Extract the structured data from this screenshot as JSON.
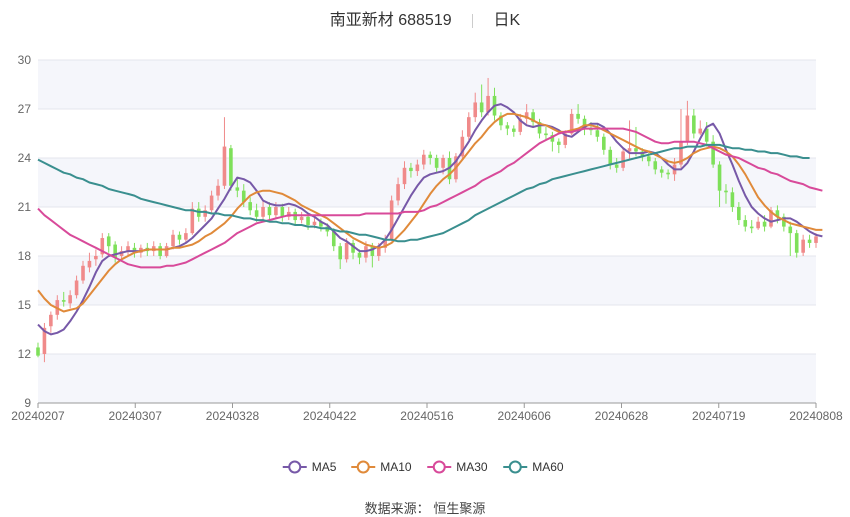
{
  "header": {
    "title": "南亚新材 688519",
    "period": "日K"
  },
  "source": {
    "label": "数据来源：",
    "provider": "恒生聚源"
  },
  "chart_data": {
    "type": "candlestick",
    "title": "南亚新材 688519 日K",
    "y_ticks": [
      9,
      12,
      15,
      18,
      21,
      24,
      27,
      30
    ],
    "ylim": [
      9,
      30
    ],
    "x_ticks": [
      "20240207",
      "20240307",
      "20240328",
      "20240422",
      "20240516",
      "20240606",
      "20240628",
      "20240719",
      "20240808"
    ],
    "up_color": "#f08a8a",
    "down_color": "#7ee05a",
    "candles": [
      [
        12.4,
        11.9,
        12.7,
        11.8
      ],
      [
        12.0,
        13.6,
        13.9,
        11.5
      ],
      [
        13.7,
        14.4,
        14.6,
        13.3
      ],
      [
        14.4,
        15.3,
        15.6,
        14.1
      ],
      [
        15.3,
        15.2,
        15.8,
        14.9
      ],
      [
        15.1,
        15.6,
        15.9,
        14.8
      ],
      [
        15.6,
        16.5,
        16.8,
        15.4
      ],
      [
        16.5,
        17.4,
        17.7,
        16.3
      ],
      [
        17.3,
        17.7,
        18.2,
        17.0
      ],
      [
        17.8,
        18.0,
        18.4,
        17.4
      ],
      [
        18.1,
        19.1,
        19.4,
        17.9
      ],
      [
        19.2,
        18.6,
        19.4,
        18.2
      ],
      [
        18.7,
        17.9,
        18.9,
        17.6
      ],
      [
        18.0,
        18.3,
        18.6,
        17.7
      ],
      [
        18.3,
        18.6,
        18.9,
        18.0
      ],
      [
        18.5,
        18.2,
        18.8,
        17.9
      ],
      [
        18.2,
        18.5,
        18.7,
        17.9
      ],
      [
        18.5,
        18.3,
        18.8,
        18.0
      ],
      [
        18.3,
        18.6,
        18.9,
        18.0
      ],
      [
        18.6,
        18.0,
        18.8,
        17.8
      ],
      [
        18.0,
        18.6,
        18.8,
        17.9
      ],
      [
        18.6,
        19.3,
        19.6,
        18.4
      ],
      [
        19.3,
        19.0,
        19.5,
        18.7
      ],
      [
        19.0,
        19.4,
        19.7,
        18.8
      ],
      [
        19.4,
        20.9,
        21.3,
        19.3
      ],
      [
        20.9,
        20.4,
        21.3,
        20.1
      ],
      [
        20.4,
        20.8,
        21.1,
        20.1
      ],
      [
        20.8,
        21.7,
        22.0,
        20.6
      ],
      [
        21.7,
        22.3,
        22.7,
        21.4
      ],
      [
        22.3,
        24.7,
        26.5,
        22.1
      ],
      [
        24.6,
        22.3,
        24.8,
        22.0
      ],
      [
        22.2,
        22.0,
        22.8,
        21.6
      ],
      [
        22.0,
        21.3,
        22.4,
        21.0
      ],
      [
        21.3,
        20.8,
        21.6,
        20.5
      ],
      [
        20.8,
        20.4,
        21.2,
        20.1
      ],
      [
        20.4,
        21.0,
        21.4,
        20.2
      ],
      [
        21.0,
        20.5,
        21.3,
        20.2
      ],
      [
        20.5,
        21.0,
        21.3,
        20.3
      ],
      [
        21.0,
        20.4,
        21.2,
        20.1
      ],
      [
        20.4,
        20.7,
        21.0,
        20.2
      ],
      [
        20.7,
        20.2,
        20.9,
        19.9
      ],
      [
        20.2,
        20.4,
        20.7,
        20.0
      ],
      [
        20.4,
        19.9,
        20.6,
        19.6
      ],
      [
        19.9,
        20.1,
        20.4,
        19.7
      ],
      [
        20.1,
        19.8,
        20.3,
        19.5
      ],
      [
        19.8,
        19.5,
        20.0,
        19.2
      ],
      [
        19.5,
        18.6,
        19.7,
        18.3
      ],
      [
        18.6,
        17.8,
        18.8,
        17.2
      ],
      [
        17.8,
        18.8,
        19.1,
        17.6
      ],
      [
        18.8,
        18.2,
        19.0,
        17.8
      ],
      [
        18.2,
        17.9,
        18.4,
        17.5
      ],
      [
        17.9,
        18.6,
        18.9,
        17.6
      ],
      [
        18.6,
        18.0,
        18.8,
        17.3
      ],
      [
        18.0,
        18.5,
        18.8,
        17.7
      ],
      [
        18.5,
        19.0,
        19.3,
        18.2
      ],
      [
        19.0,
        21.4,
        21.7,
        18.9
      ],
      [
        21.4,
        22.4,
        22.8,
        21.1
      ],
      [
        22.4,
        23.4,
        23.8,
        22.1
      ],
      [
        23.4,
        23.2,
        23.7,
        22.8
      ],
      [
        23.2,
        23.6,
        23.9,
        22.9
      ],
      [
        23.6,
        24.2,
        24.5,
        23.3
      ],
      [
        24.2,
        24.0,
        24.4,
        23.6
      ],
      [
        24.0,
        23.4,
        24.2,
        23.1
      ],
      [
        23.4,
        24.0,
        24.2,
        23.0
      ],
      [
        24.0,
        22.7,
        24.4,
        22.4
      ],
      [
        22.7,
        24.1,
        24.3,
        22.5
      ],
      [
        24.1,
        25.3,
        25.7,
        23.9
      ],
      [
        25.3,
        26.5,
        26.8,
        25.1
      ],
      [
        26.5,
        27.4,
        28.0,
        26.2
      ],
      [
        27.4,
        26.8,
        28.5,
        26.5
      ],
      [
        26.8,
        27.8,
        28.9,
        26.6
      ],
      [
        27.8,
        26.6,
        28.3,
        26.3
      ],
      [
        26.6,
        26.0,
        26.8,
        25.7
      ],
      [
        26.0,
        25.8,
        26.2,
        25.4
      ],
      [
        25.8,
        25.6,
        26.0,
        25.3
      ],
      [
        25.6,
        26.4,
        26.7,
        25.4
      ],
      [
        26.4,
        26.8,
        27.3,
        26.1
      ],
      [
        26.8,
        26.2,
        27.0,
        25.9
      ],
      [
        26.2,
        25.5,
        26.4,
        25.2
      ],
      [
        25.5,
        25.4,
        25.9,
        25.1
      ],
      [
        25.4,
        25.0,
        25.6,
        24.4
      ],
      [
        25.0,
        24.8,
        25.2,
        24.3
      ],
      [
        24.8,
        25.5,
        25.7,
        24.6
      ],
      [
        25.5,
        26.7,
        27.0,
        25.4
      ],
      [
        26.7,
        26.4,
        27.3,
        26.1
      ],
      [
        26.4,
        25.8,
        26.6,
        25.4
      ],
      [
        25.8,
        25.7,
        26.2,
        25.4
      ],
      [
        25.7,
        25.3,
        26.1,
        25.0
      ],
      [
        25.3,
        24.5,
        25.5,
        24.2
      ],
      [
        24.5,
        23.6,
        24.7,
        23.3
      ],
      [
        23.6,
        23.4,
        24.0,
        23.1
      ],
      [
        23.4,
        24.4,
        24.6,
        23.2
      ],
      [
        24.4,
        24.6,
        26.3,
        23.9
      ],
      [
        24.6,
        24.4,
        25.9,
        24.1
      ],
      [
        24.4,
        24.1,
        24.6,
        23.8
      ],
      [
        24.1,
        23.8,
        24.3,
        23.5
      ],
      [
        23.8,
        23.3,
        24.0,
        23.0
      ],
      [
        23.3,
        23.1,
        23.5,
        22.8
      ],
      [
        23.1,
        23.0,
        23.3,
        22.7
      ],
      [
        23.0,
        23.6,
        24.0,
        22.6
      ],
      [
        23.6,
        25.0,
        27.0,
        23.4
      ],
      [
        25.0,
        26.6,
        27.5,
        24.8
      ],
      [
        26.6,
        25.5,
        27.0,
        25.2
      ],
      [
        25.5,
        25.8,
        26.3,
        25.4
      ],
      [
        25.8,
        25.0,
        26.2,
        24.7
      ],
      [
        25.0,
        23.6,
        25.4,
        23.4
      ],
      [
        23.6,
        22.0,
        23.8,
        21.0
      ],
      [
        22.0,
        21.9,
        22.4,
        21.2
      ],
      [
        21.9,
        21.0,
        22.2,
        20.7
      ],
      [
        21.0,
        20.2,
        21.3,
        19.9
      ],
      [
        20.2,
        19.8,
        20.5,
        19.5
      ],
      [
        19.8,
        19.7,
        20.2,
        19.4
      ],
      [
        19.7,
        20.1,
        20.4,
        19.6
      ],
      [
        20.1,
        19.8,
        20.5,
        19.5
      ],
      [
        19.8,
        20.8,
        21.0,
        19.7
      ],
      [
        20.8,
        20.4,
        21.1,
        20.0
      ],
      [
        20.4,
        19.8,
        20.6,
        19.5
      ],
      [
        19.8,
        19.4,
        20.1,
        18.0
      ],
      [
        19.4,
        18.2,
        19.6,
        17.9
      ],
      [
        18.2,
        19.0,
        19.3,
        18.0
      ],
      [
        19.0,
        18.8,
        19.3,
        18.5
      ],
      [
        18.8,
        19.2,
        19.4,
        18.5
      ]
    ],
    "series": [
      {
        "name": "MA5",
        "color": "#7759a8",
        "values": [
          13.8,
          13.4,
          13.2,
          13.3,
          13.5,
          14.0,
          14.6,
          15.3,
          16.1,
          17.0,
          17.7,
          18.0,
          18.1,
          18.2,
          18.3,
          18.3,
          18.3,
          18.4,
          18.4,
          18.4,
          18.4,
          18.5,
          18.6,
          18.8,
          19.1,
          19.5,
          19.9,
          20.3,
          20.9,
          21.5,
          22.2,
          22.8,
          22.7,
          22.5,
          22.0,
          21.4,
          21.2,
          21.1,
          21.1,
          21.2,
          21.1,
          20.9,
          20.6,
          20.4,
          20.1,
          19.9,
          19.5,
          19.1,
          18.9,
          18.6,
          18.3,
          18.3,
          18.4,
          18.6,
          19.0,
          19.6,
          20.3,
          21.0,
          21.7,
          22.3,
          22.8,
          23.0,
          23.1,
          23.2,
          23.4,
          23.8,
          24.4,
          25.0,
          25.7,
          26.3,
          26.8,
          27.2,
          27.3,
          27.1,
          26.8,
          26.3,
          26.0,
          25.9,
          26.0,
          26.0,
          25.9,
          25.7,
          25.4,
          25.3,
          25.6,
          25.9,
          26.1,
          26.1,
          25.9,
          25.5,
          25.0,
          24.6,
          24.3,
          24.3,
          24.3,
          24.4,
          24.3,
          24.0,
          23.6,
          23.3,
          23.3,
          23.7,
          24.4,
          25.2,
          25.9,
          26.1,
          25.5,
          24.5,
          23.6,
          22.6,
          21.7,
          21.0,
          20.6,
          20.3,
          20.1,
          20.2,
          20.3,
          20.3,
          20.1,
          19.8,
          19.5,
          19.3,
          19.2
        ]
      },
      {
        "name": "MA10",
        "color": "#e08a3a",
        "values": [
          15.9,
          15.4,
          15.0,
          14.8,
          14.6,
          14.7,
          14.8,
          15.1,
          15.6,
          16.1,
          16.6,
          17.1,
          17.5,
          17.8,
          18.0,
          18.2,
          18.3,
          18.4,
          18.4,
          18.4,
          18.4,
          18.5,
          18.5,
          18.6,
          18.7,
          18.9,
          19.2,
          19.4,
          19.7,
          20.0,
          20.4,
          20.9,
          21.3,
          21.7,
          21.9,
          22.0,
          22.0,
          21.9,
          21.8,
          21.6,
          21.4,
          21.1,
          20.9,
          20.7,
          20.5,
          20.3,
          20.0,
          19.7,
          19.4,
          19.1,
          18.9,
          18.7,
          18.6,
          18.5,
          18.6,
          18.8,
          19.2,
          19.6,
          20.1,
          20.6,
          21.2,
          21.8,
          22.3,
          22.7,
          23.0,
          23.4,
          23.9,
          24.4,
          24.9,
          25.3,
          25.8,
          26.2,
          26.5,
          26.7,
          26.7,
          26.6,
          26.5,
          26.3,
          26.1,
          26.0,
          25.8,
          25.6,
          25.6,
          25.7,
          25.8,
          26.0,
          26.0,
          25.9,
          25.7,
          25.5,
          25.3,
          25.1,
          24.9,
          24.7,
          24.5,
          24.4,
          24.2,
          24.0,
          23.8,
          23.7,
          23.8,
          24.0,
          24.3,
          24.5,
          24.6,
          24.7,
          24.6,
          24.4,
          24.1,
          23.6,
          23.0,
          22.3,
          21.6,
          21.1,
          20.7,
          20.4,
          20.2,
          20.0,
          19.9,
          19.8,
          19.7,
          19.6,
          19.6
        ]
      },
      {
        "name": "MA30",
        "color": "#d84a9a",
        "values": [
          20.9,
          20.5,
          20.2,
          19.9,
          19.6,
          19.3,
          19.1,
          18.9,
          18.7,
          18.5,
          18.3,
          18.1,
          17.9,
          17.7,
          17.5,
          17.4,
          17.3,
          17.3,
          17.3,
          17.3,
          17.4,
          17.4,
          17.5,
          17.6,
          17.8,
          18.0,
          18.2,
          18.4,
          18.6,
          18.8,
          19.1,
          19.4,
          19.6,
          19.8,
          20.0,
          20.1,
          20.2,
          20.3,
          20.4,
          20.5,
          20.5,
          20.5,
          20.5,
          20.5,
          20.5,
          20.5,
          20.5,
          20.5,
          20.5,
          20.5,
          20.5,
          20.6,
          20.6,
          20.6,
          20.6,
          20.6,
          20.6,
          20.7,
          20.7,
          20.7,
          20.8,
          21.0,
          21.1,
          21.3,
          21.5,
          21.7,
          21.9,
          22.1,
          22.3,
          22.6,
          22.8,
          23.0,
          23.2,
          23.5,
          23.7,
          24.0,
          24.3,
          24.6,
          24.9,
          25.1,
          25.3,
          25.5,
          25.6,
          25.6,
          25.7,
          25.8,
          25.8,
          25.8,
          25.8,
          25.8,
          25.8,
          25.8,
          25.7,
          25.6,
          25.4,
          25.2,
          25.0,
          24.9,
          24.9,
          25.0,
          25.0,
          25.0,
          25.0,
          24.9,
          24.8,
          24.6,
          24.4,
          24.2,
          24.1,
          24.0,
          23.8,
          23.6,
          23.4,
          23.3,
          23.1,
          23.0,
          22.8,
          22.6,
          22.5,
          22.4,
          22.2,
          22.1,
          22.0
        ]
      },
      {
        "name": "MA60",
        "color": "#3a8f8f",
        "values": [
          23.9,
          23.7,
          23.5,
          23.3,
          23.1,
          23.0,
          22.8,
          22.7,
          22.5,
          22.4,
          22.3,
          22.1,
          22.0,
          21.9,
          21.8,
          21.7,
          21.5,
          21.4,
          21.3,
          21.2,
          21.1,
          21.0,
          20.9,
          20.8,
          20.8,
          20.7,
          20.7,
          20.6,
          20.6,
          20.5,
          20.5,
          20.4,
          20.3,
          20.3,
          20.2,
          20.2,
          20.1,
          20.1,
          20.0,
          20.0,
          19.9,
          19.9,
          19.8,
          19.8,
          19.7,
          19.7,
          19.6,
          19.5,
          19.5,
          19.4,
          19.3,
          19.3,
          19.2,
          19.1,
          19.0,
          19.0,
          18.9,
          18.9,
          19.0,
          19.0,
          19.1,
          19.2,
          19.3,
          19.4,
          19.6,
          19.8,
          20.0,
          20.2,
          20.5,
          20.7,
          20.9,
          21.1,
          21.3,
          21.5,
          21.7,
          21.9,
          22.1,
          22.2,
          22.4,
          22.5,
          22.7,
          22.8,
          22.9,
          23.0,
          23.1,
          23.2,
          23.3,
          23.4,
          23.5,
          23.6,
          23.7,
          23.8,
          23.9,
          24.0,
          24.1,
          24.2,
          24.3,
          24.4,
          24.5,
          24.6,
          24.6,
          24.7,
          24.7,
          24.7,
          24.8,
          24.8,
          24.8,
          24.7,
          24.6,
          24.6,
          24.5,
          24.5,
          24.4,
          24.4,
          24.3,
          24.3,
          24.2,
          24.1,
          24.1,
          24.0,
          24.0
        ]
      }
    ],
    "legend_position": "bottom",
    "grid": true
  }
}
